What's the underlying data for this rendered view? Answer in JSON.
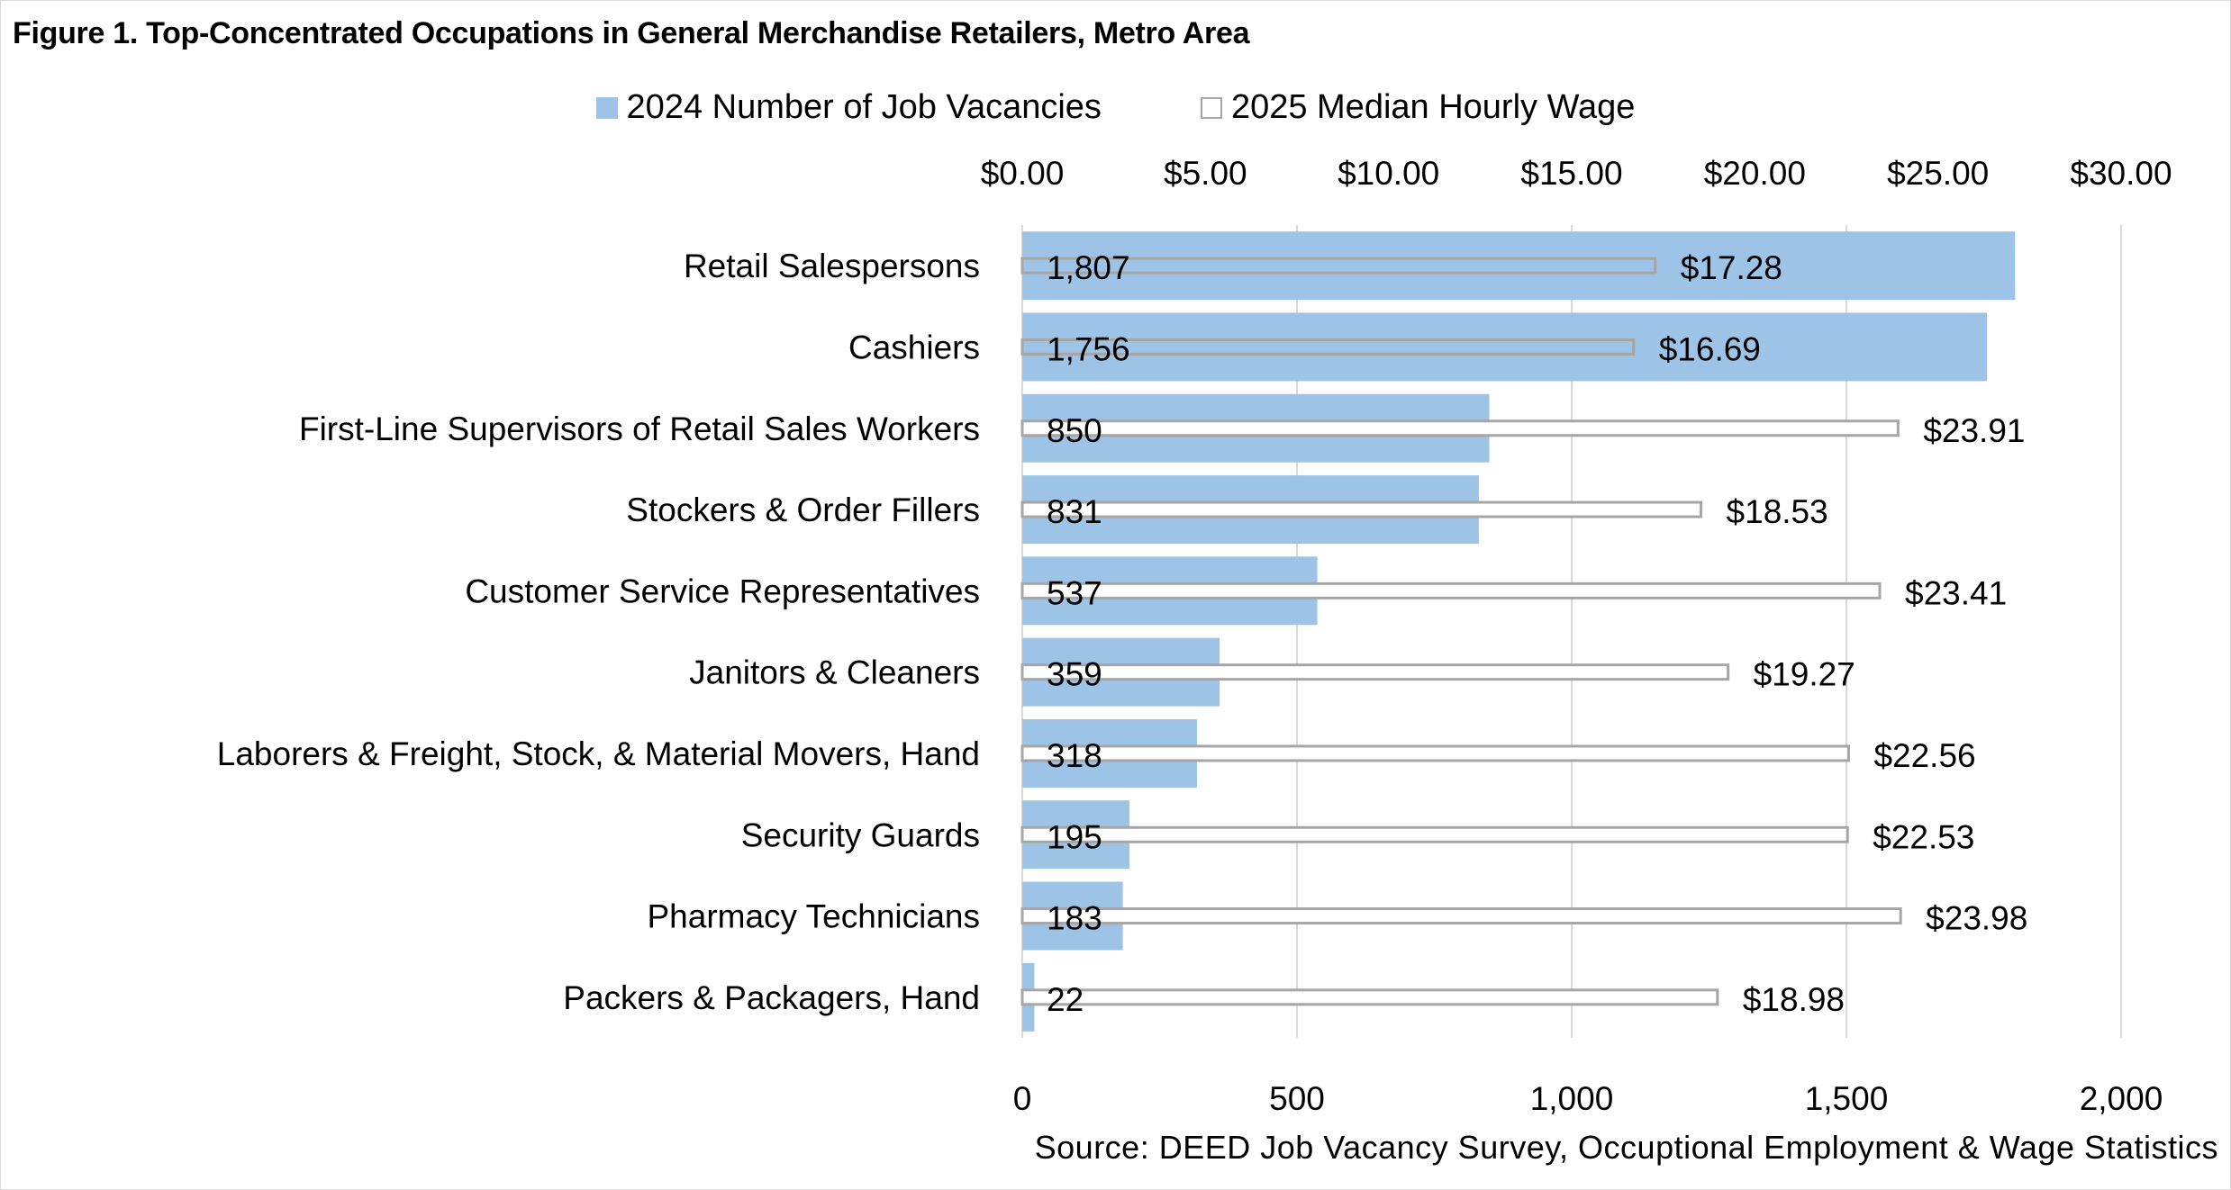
{
  "chart_data": {
    "type": "bar",
    "orientation": "horizontal",
    "title": "Figure 1. Top-Concentrated Occupations in General Merchandise Retailers, Metro Area",
    "source": "Source: DEED Job Vacancy Survey, Occuptional Employment & Wage Statistics",
    "categories": [
      "Retail Salespersons",
      "Cashiers",
      "First-Line Supervisors of Retail Sales Workers",
      "Stockers & Order Fillers",
      "Customer Service Representatives",
      "Janitors & Cleaners",
      "Laborers & Freight, Stock, & Material Movers, Hand",
      "Security Guards",
      "Pharmacy Technicians",
      "Packers & Packagers, Hand"
    ],
    "series": [
      {
        "name": "2024 Number of Job Vacancies",
        "axis": "bottom",
        "color": "#9DC3E6",
        "values": [
          1807,
          1756,
          850,
          831,
          537,
          359,
          318,
          195,
          183,
          22
        ],
        "labels": [
          "1,807",
          "1,756",
          "850",
          "831",
          "537",
          "359",
          "318",
          "195",
          "183",
          "22"
        ]
      },
      {
        "name": "2025 Median Hourly Wage",
        "axis": "top",
        "color": "#FFFFFF",
        "outline": "#A6A6A6",
        "values": [
          17.28,
          16.69,
          23.91,
          18.53,
          23.41,
          19.27,
          22.56,
          22.53,
          23.98,
          18.98
        ],
        "labels": [
          "$17.28",
          "$16.69",
          "$23.91",
          "$18.53",
          "$23.41",
          "$19.27",
          "$22.56",
          "$22.53",
          "$23.98",
          "$18.98"
        ]
      }
    ],
    "bottom_axis": {
      "range": [
        0,
        2000
      ],
      "ticks": [
        0,
        500,
        1000,
        1500,
        2000
      ],
      "tick_labels": [
        "0",
        "500",
        "1,000",
        "1,500",
        "2,000"
      ]
    },
    "top_axis": {
      "range": [
        0,
        30
      ],
      "ticks": [
        0,
        5,
        10,
        15,
        20,
        25,
        30
      ],
      "tick_labels": [
        "$0.00",
        "$5.00",
        "$10.00",
        "$15.00",
        "$20.00",
        "$25.00",
        "$30.00"
      ]
    },
    "grid": true,
    "legend_position": "top"
  }
}
